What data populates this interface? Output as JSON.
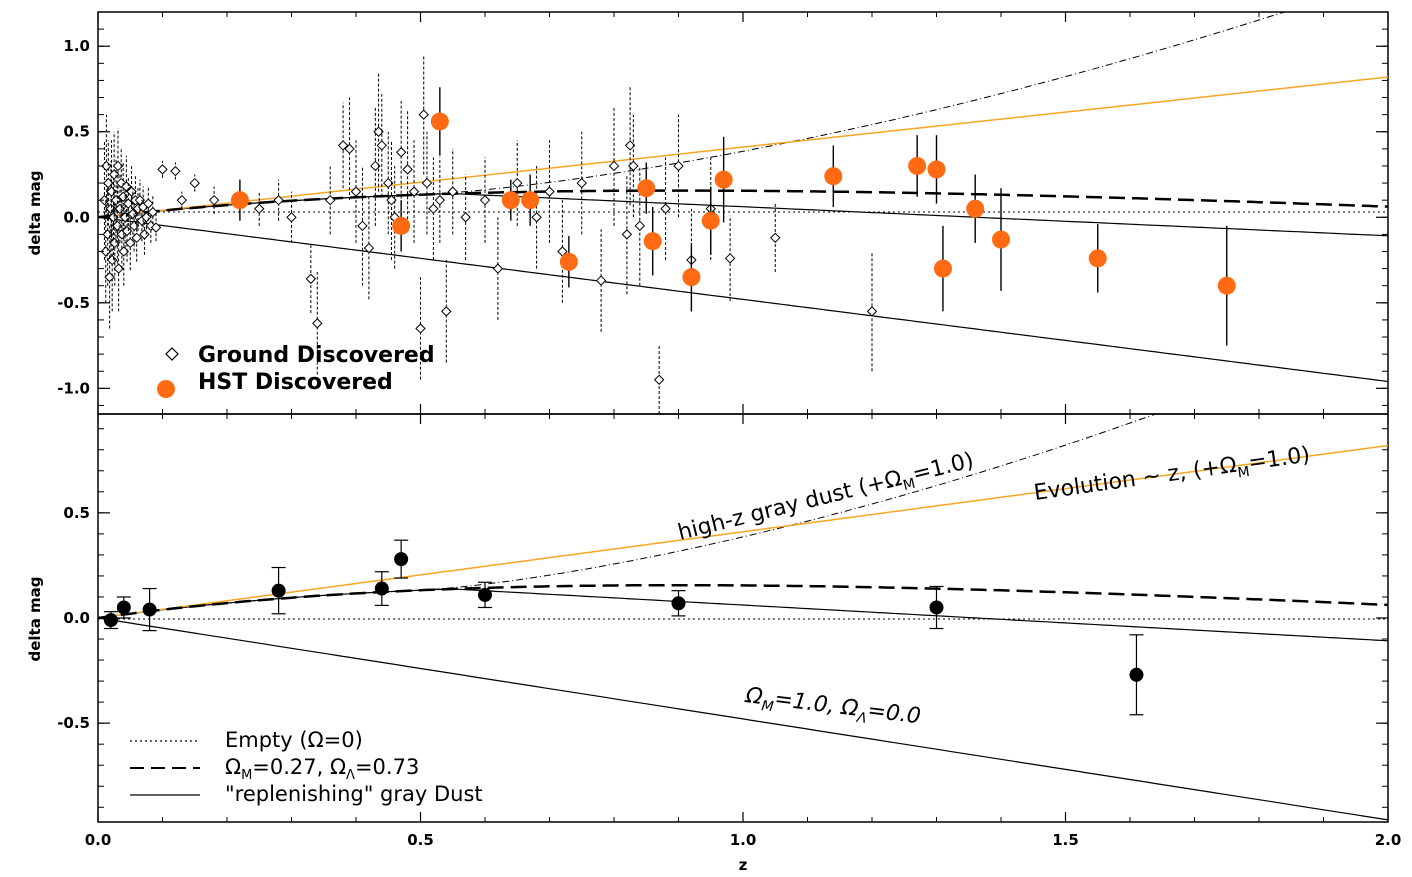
{
  "colors": {
    "hst": "#ff6a13",
    "evolution": "#f5a623",
    "ink": "#000000"
  },
  "chart_data": [
    {
      "type": "scatter",
      "panel": "top",
      "xlim": [
        0,
        2.0
      ],
      "ylim": [
        -1.15,
        1.2
      ],
      "xticks": [
        "0.0",
        "0.5",
        "1.0",
        "1.5",
        "2.0"
      ],
      "yticks": [
        "1.0",
        "0.5",
        "0.0",
        "-0.5",
        "-1.0"
      ],
      "ylabel": "delta mag",
      "legend": {
        "placement": "bottom-left",
        "ground_label": "Ground Discovered",
        "hst_label": "HST Discovered"
      },
      "ground": [
        [
          0.01,
          0.1,
          0.35
        ],
        [
          0.012,
          -0.2,
          0.3
        ],
        [
          0.013,
          0.3,
          0.3
        ],
        [
          0.015,
          -0.1,
          0.3
        ],
        [
          0.016,
          0.2,
          0.25
        ],
        [
          0.018,
          -0.35,
          0.3
        ],
        [
          0.02,
          0.05,
          0.28
        ],
        [
          0.021,
          0.15,
          0.3
        ],
        [
          0.022,
          -0.25,
          0.3
        ],
        [
          0.024,
          0.0,
          0.25
        ],
        [
          0.025,
          0.25,
          0.25
        ],
        [
          0.026,
          -0.15,
          0.25
        ],
        [
          0.028,
          0.1,
          0.25
        ],
        [
          0.03,
          -0.05,
          0.25
        ],
        [
          0.031,
          0.3,
          0.22
        ],
        [
          0.032,
          -0.3,
          0.25
        ],
        [
          0.034,
          0.05,
          0.2
        ],
        [
          0.036,
          0.2,
          0.2
        ],
        [
          0.037,
          -0.1,
          0.2
        ],
        [
          0.039,
          0.12,
          0.2
        ],
        [
          0.04,
          -0.2,
          0.2
        ],
        [
          0.042,
          0.0,
          0.18
        ],
        [
          0.044,
          0.18,
          0.18
        ],
        [
          0.045,
          -0.08,
          0.18
        ],
        [
          0.047,
          0.08,
          0.16
        ],
        [
          0.05,
          -0.15,
          0.16
        ],
        [
          0.052,
          0.15,
          0.16
        ],
        [
          0.054,
          0.02,
          0.15
        ],
        [
          0.056,
          -0.05,
          0.15
        ],
        [
          0.058,
          0.1,
          0.14
        ],
        [
          0.06,
          -0.12,
          0.14
        ],
        [
          0.062,
          0.05,
          0.13
        ],
        [
          0.065,
          0.1,
          0.12
        ],
        [
          0.068,
          -0.02,
          0.12
        ],
        [
          0.07,
          0.06,
          0.12
        ],
        [
          0.072,
          -0.1,
          0.12
        ],
        [
          0.075,
          0.0,
          0.1
        ],
        [
          0.078,
          0.08,
          0.1
        ],
        [
          0.082,
          -0.05,
          0.1
        ],
        [
          0.085,
          0.03,
          0.1
        ],
        [
          0.09,
          -0.06,
          0.08
        ],
        [
          0.1,
          0.28,
          0.05
        ],
        [
          0.12,
          0.27,
          0.05
        ],
        [
          0.13,
          0.1,
          0.05
        ],
        [
          0.15,
          0.2,
          0.05
        ],
        [
          0.18,
          0.1,
          0.08
        ],
        [
          0.22,
          0.1,
          0.08
        ],
        [
          0.25,
          0.05,
          0.1
        ],
        [
          0.28,
          0.1,
          0.12
        ],
        [
          0.3,
          0.0,
          0.15
        ],
        [
          0.33,
          -0.36,
          0.2
        ],
        [
          0.34,
          -0.62,
          0.3
        ],
        [
          0.36,
          0.1,
          0.2
        ],
        [
          0.38,
          0.42,
          0.25
        ],
        [
          0.39,
          0.4,
          0.3
        ],
        [
          0.4,
          0.15,
          0.3
        ],
        [
          0.41,
          -0.05,
          0.35
        ],
        [
          0.42,
          -0.18,
          0.3
        ],
        [
          0.43,
          0.3,
          0.35
        ],
        [
          0.435,
          0.5,
          0.35
        ],
        [
          0.44,
          0.42,
          0.3
        ],
        [
          0.45,
          0.2,
          0.3
        ],
        [
          0.455,
          0.1,
          0.35
        ],
        [
          0.46,
          0.0,
          0.3
        ],
        [
          0.47,
          0.38,
          0.3
        ],
        [
          0.48,
          0.28,
          0.35
        ],
        [
          0.49,
          0.15,
          0.3
        ],
        [
          0.5,
          -0.65,
          0.3
        ],
        [
          0.505,
          0.6,
          0.35
        ],
        [
          0.51,
          0.2,
          0.3
        ],
        [
          0.52,
          0.05,
          0.3
        ],
        [
          0.53,
          0.1,
          0.25
        ],
        [
          0.54,
          -0.55,
          0.3
        ],
        [
          0.55,
          0.15,
          0.25
        ],
        [
          0.57,
          0.0,
          0.25
        ],
        [
          0.6,
          0.1,
          0.25
        ],
        [
          0.62,
          -0.3,
          0.3
        ],
        [
          0.65,
          0.2,
          0.25
        ],
        [
          0.68,
          0.0,
          0.3
        ],
        [
          0.7,
          0.15,
          0.3
        ],
        [
          0.72,
          -0.2,
          0.3
        ],
        [
          0.75,
          0.2,
          0.3
        ],
        [
          0.78,
          -0.37,
          0.3
        ],
        [
          0.8,
          0.3,
          0.35
        ],
        [
          0.82,
          -0.1,
          0.35
        ],
        [
          0.825,
          0.42,
          0.35
        ],
        [
          0.83,
          0.3,
          0.3
        ],
        [
          0.84,
          -0.05,
          0.35
        ],
        [
          0.87,
          -0.95,
          0.2
        ],
        [
          0.88,
          0.05,
          0.3
        ],
        [
          0.9,
          0.3,
          0.3
        ],
        [
          0.92,
          -0.25,
          0.3
        ],
        [
          0.95,
          0.05,
          0.3
        ],
        [
          0.98,
          -0.24,
          0.25
        ],
        [
          1.05,
          -0.12,
          0.2
        ],
        [
          1.2,
          -0.55,
          0.35
        ]
      ],
      "hst": [
        [
          0.22,
          0.1,
          0.12
        ],
        [
          0.47,
          -0.05,
          0.15
        ],
        [
          0.53,
          0.56,
          0.2
        ],
        [
          0.64,
          0.1,
          0.12
        ],
        [
          0.67,
          0.1,
          0.15
        ],
        [
          0.73,
          -0.26,
          0.15
        ],
        [
          0.85,
          0.17,
          0.15
        ],
        [
          0.86,
          -0.14,
          0.2
        ],
        [
          0.92,
          -0.35,
          0.2
        ],
        [
          0.95,
          -0.02,
          0.2
        ],
        [
          0.97,
          0.22,
          0.25
        ],
        [
          1.14,
          0.24,
          0.18
        ],
        [
          1.27,
          0.3,
          0.18
        ],
        [
          1.3,
          0.28,
          0.2
        ],
        [
          1.31,
          -0.3,
          0.25
        ],
        [
          1.36,
          0.05,
          0.2
        ],
        [
          1.4,
          -0.13,
          0.3
        ],
        [
          1.55,
          -0.24,
          0.2
        ],
        [
          1.75,
          -0.4,
          0.35
        ]
      ]
    },
    {
      "type": "scatter",
      "panel": "bottom",
      "xlim": [
        0,
        2.0
      ],
      "ylim": [
        -0.97,
        0.97
      ],
      "xticks": [
        "0.0",
        "0.5",
        "1.0",
        "1.5",
        "2.0"
      ],
      "yticks": [
        "0.5",
        "0.0",
        "-0.5"
      ],
      "xlabel": "z",
      "ylabel": "delta mag",
      "binned": [
        [
          0.02,
          -0.01,
          0.04
        ],
        [
          0.04,
          0.05,
          0.05
        ],
        [
          0.08,
          0.04,
          0.1
        ],
        [
          0.28,
          0.13,
          0.11
        ],
        [
          0.44,
          0.14,
          0.08
        ],
        [
          0.47,
          0.28,
          0.09
        ],
        [
          0.6,
          0.11,
          0.06
        ],
        [
          0.9,
          0.07,
          0.06
        ],
        [
          1.3,
          0.05,
          0.1
        ],
        [
          1.61,
          -0.27,
          0.19
        ]
      ],
      "annotations": {
        "dust": "high-z gray dust (+Ω",
        "dust_sub": "M",
        "dust_tail": "=1.0)",
        "evol": "Evolution ~ z, (+Ω",
        "evol_sub": "M",
        "evol_tail": "=1.0)",
        "om_a": "Ω",
        "om_a_sub": "M",
        "om_b": "=1.0, Ω",
        "om_b_sub": "Λ",
        "om_c": "=0.0"
      },
      "legend": {
        "empty": " Empty (Ω=0)",
        "lcdm_a": "Ω",
        "lcdm_a_sub": "M",
        "lcdm_b": "=0.27, Ω",
        "lcdm_b_sub": "Λ",
        "lcdm_c": "=0.73",
        "dust": "\"replenishing\" gray Dust"
      }
    }
  ]
}
